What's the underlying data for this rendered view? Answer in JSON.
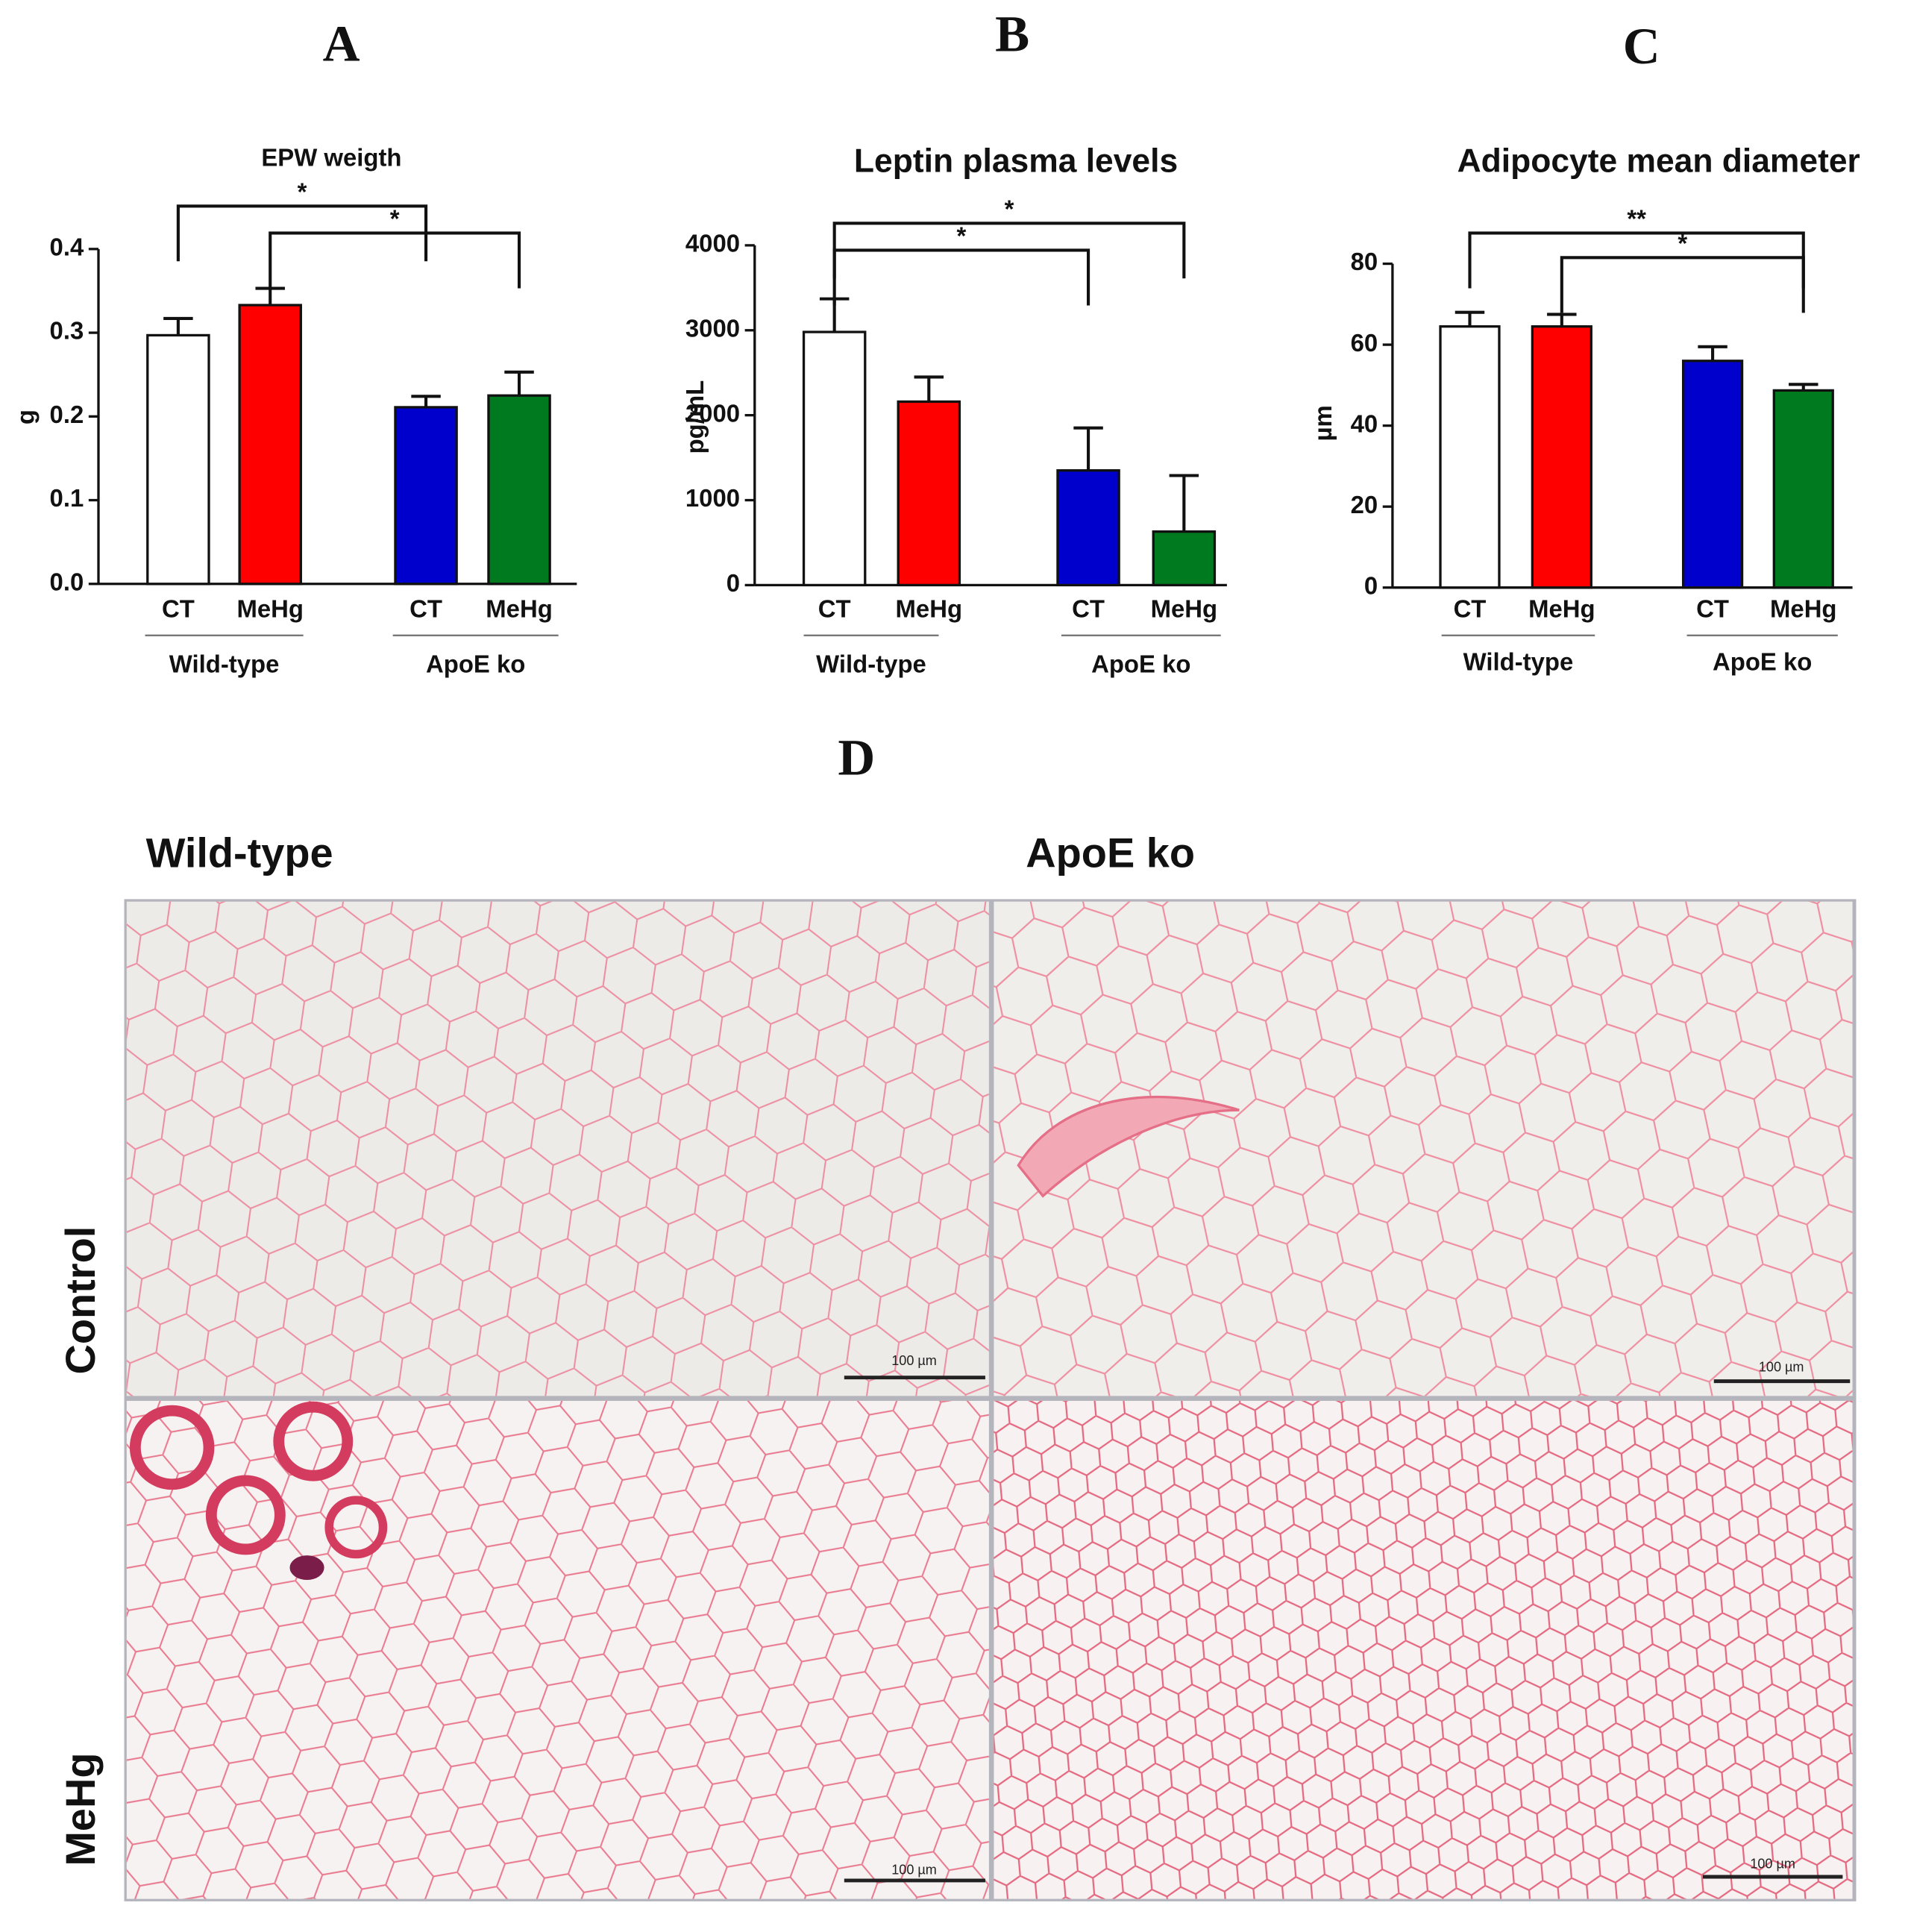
{
  "chart_data": [
    {
      "panel": "A",
      "type": "bar",
      "title": "EPW weigth",
      "y_label": "g",
      "categories": [
        "CT",
        "MeHg",
        "CT",
        "MeHg"
      ],
      "groups": [
        "Wild-type",
        "ApoE ko"
      ],
      "values": [
        0.297,
        0.333,
        0.211,
        0.225
      ],
      "errors": [
        0.02,
        0.02,
        0.013,
        0.028
      ],
      "colors": [
        "#ffffff",
        "#ff0000",
        "#0000cc",
        "#007a1e"
      ],
      "ylim": [
        0,
        0.4
      ],
      "yticks": [
        {
          "value": 0,
          "label": "0.0"
        },
        0.1,
        0.2,
        0.3,
        0.4
      ],
      "comparisons": [
        {
          "bars": [
            0,
            2
          ],
          "label": "*"
        },
        {
          "bars": [
            1,
            3
          ],
          "label": "*"
        }
      ]
    },
    {
      "panel": "B",
      "type": "bar",
      "title": "Leptin plasma levels",
      "y_label": "pg/mL",
      "categories": [
        "CT",
        "MeHg",
        "CT",
        "MeHg"
      ],
      "groups": [
        "Wild-type",
        "ApoE ko"
      ],
      "values": [
        2980,
        2160,
        1350,
        630
      ],
      "errors": [
        390,
        290,
        500,
        660
      ],
      "colors": [
        "#ffffff",
        "#ff0000",
        "#0000cc",
        "#007a1e"
      ],
      "ylim": [
        0,
        4000
      ],
      "yticks": [
        0,
        1000,
        2000,
        3000,
        4000
      ],
      "comparisons": [
        {
          "bars": [
            0,
            3
          ],
          "label": "*"
        },
        {
          "bars": [
            0,
            2
          ],
          "label": "*"
        }
      ]
    },
    {
      "panel": "C",
      "type": "bar",
      "title": "Adipocyte mean diameter",
      "y_label": "µm",
      "categories": [
        "CT",
        "MeHg",
        "CT",
        "MeHg"
      ],
      "groups": [
        "Wild-type",
        "ApoE ko"
      ],
      "values": [
        64.5,
        64.5,
        56,
        48.7
      ],
      "errors": [
        3.5,
        3,
        3.5,
        1.5
      ],
      "colors": [
        "#ffffff",
        "#ff0000",
        "#0000cc",
        "#007a1e"
      ],
      "ylim": [
        0,
        80
      ],
      "yticks": [
        0,
        20,
        40,
        60,
        80
      ],
      "comparisons": [
        {
          "bars": [
            0,
            3
          ],
          "label": "**"
        },
        {
          "bars": [
            1,
            3
          ],
          "label": "*"
        }
      ]
    }
  ],
  "micrographs": {
    "panel": "D",
    "columns": [
      "Wild-type",
      "ApoE ko"
    ],
    "rows": [
      "Control",
      "MeHg"
    ],
    "scale_bars": [
      "100 µm",
      "100 µm",
      "100 µm",
      "100 µm"
    ]
  }
}
